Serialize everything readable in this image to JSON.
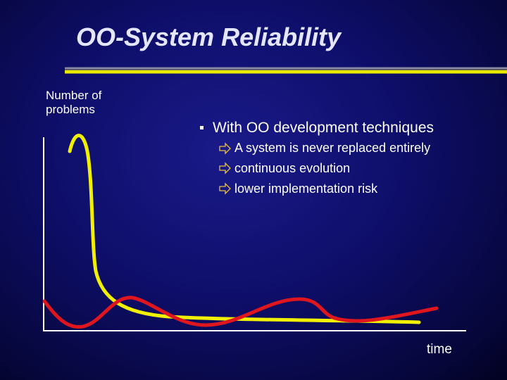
{
  "title": "OO-System Reliability",
  "diagram": {
    "y_label": "Number of problems",
    "x_label": "time"
  },
  "bullets": {
    "heading": "With OO development techniques",
    "items": [
      "A system is never replaced entirely",
      "continuous evolution",
      "lower implementation risk"
    ]
  }
}
